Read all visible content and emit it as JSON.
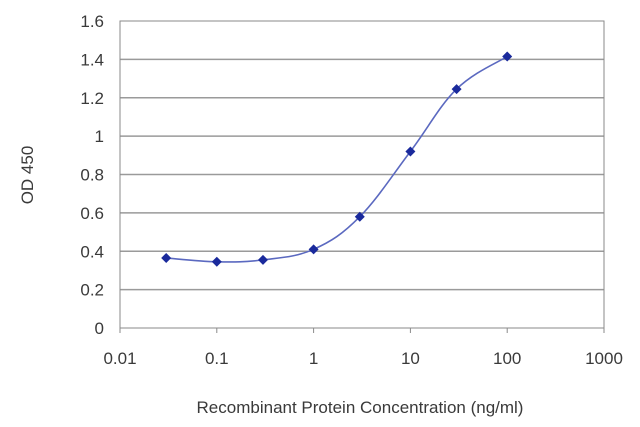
{
  "chart_data": {
    "type": "line",
    "xlabel": "Recombinant Protein Concentration (ng/ml)",
    "ylabel": "OD 450",
    "xscale": "log",
    "xlim": [
      0.01,
      1000
    ],
    "ylim": [
      0,
      1.6
    ],
    "x_ticks": [
      "0.01",
      "0.1",
      "1",
      "10",
      "100",
      "1000"
    ],
    "y_ticks": [
      "0",
      "0.2",
      "0.4",
      "0.6",
      "0.8",
      "1",
      "1.2",
      "1.4",
      "1.6"
    ],
    "grid": "horizontal",
    "series": [
      {
        "x": [
          0.03,
          0.1,
          0.3,
          1,
          3,
          10,
          30,
          100
        ],
        "y": [
          0.365,
          0.345,
          0.355,
          0.41,
          0.58,
          0.92,
          1.245,
          1.415
        ],
        "marker": "diamond",
        "color": "#1a2a9c",
        "line_color": "#5b69c0"
      }
    ],
    "colors": {
      "plot_background": "#ffffff",
      "gridline": "#9a9a9a",
      "border": "#8a8a8a"
    }
  }
}
